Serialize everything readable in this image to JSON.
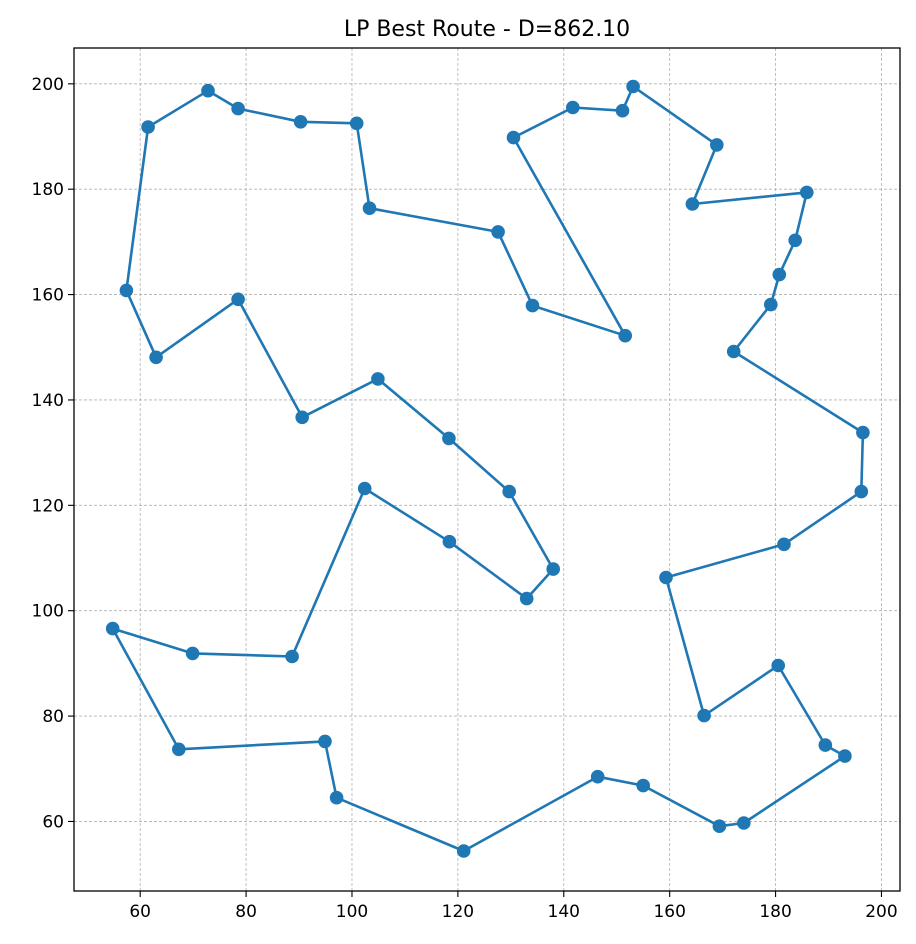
{
  "chart_data": {
    "type": "line",
    "title": "LP Best Route - D=862.10",
    "xlabel": "",
    "ylabel": "",
    "xlim": [
      47.5,
      203.5
    ],
    "ylim": [
      46.8,
      206.8
    ],
    "xticks": [
      60,
      80,
      100,
      120,
      140,
      160,
      180,
      200
    ],
    "yticks": [
      60,
      80,
      100,
      120,
      140,
      160,
      180,
      200
    ],
    "grid": true,
    "series": [
      {
        "color": "#1f77b4",
        "marker": "circle",
        "points": [
          [
            61.5,
            191.8
          ],
          [
            72.8,
            198.7
          ],
          [
            78.5,
            195.3
          ],
          [
            90.3,
            192.8
          ],
          [
            100.9,
            192.5
          ],
          [
            103.3,
            176.4
          ],
          [
            127.6,
            171.9
          ],
          [
            134.1,
            157.9
          ],
          [
            151.6,
            152.2
          ],
          [
            130.5,
            189.8
          ],
          [
            141.7,
            195.5
          ],
          [
            151.1,
            194.9
          ],
          [
            153.1,
            199.5
          ],
          [
            168.9,
            188.4
          ],
          [
            164.3,
            177.2
          ],
          [
            185.9,
            179.4
          ],
          [
            183.7,
            170.3
          ],
          [
            180.7,
            163.8
          ],
          [
            179.1,
            158.1
          ],
          [
            172.1,
            149.2
          ],
          [
            196.5,
            133.8
          ],
          [
            196.2,
            122.6
          ],
          [
            181.6,
            112.6
          ],
          [
            159.3,
            106.3
          ],
          [
            166.5,
            80.1
          ],
          [
            180.5,
            89.6
          ],
          [
            189.4,
            74.5
          ],
          [
            193.1,
            72.4
          ],
          [
            174.0,
            59.7
          ],
          [
            169.4,
            59.1
          ],
          [
            155.0,
            66.8
          ],
          [
            146.4,
            68.5
          ],
          [
            121.1,
            54.4
          ],
          [
            97.1,
            64.5
          ],
          [
            94.9,
            75.2
          ],
          [
            67.3,
            73.7
          ],
          [
            54.8,
            96.6
          ],
          [
            69.9,
            91.9
          ],
          [
            88.7,
            91.3
          ],
          [
            102.4,
            123.2
          ],
          [
            118.4,
            113.1
          ],
          [
            133.0,
            102.3
          ],
          [
            138.0,
            107.9
          ],
          [
            129.7,
            122.6
          ],
          [
            118.3,
            132.7
          ],
          [
            104.9,
            144.0
          ],
          [
            90.6,
            136.7
          ],
          [
            78.5,
            159.1
          ],
          [
            63.0,
            148.1
          ],
          [
            57.4,
            160.8
          ],
          [
            61.5,
            191.8
          ]
        ]
      }
    ]
  }
}
